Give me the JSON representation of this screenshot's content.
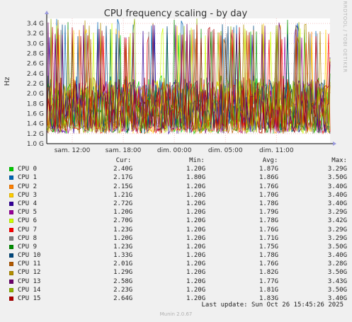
{
  "chart_data": {
    "type": "line",
    "title": "CPU frequency scaling - by day",
    "ylabel": "Hz",
    "side_label": "RRDTOOL / TOBI OETIKER",
    "ylim": [
      1.0,
      3.5
    ],
    "y_ticks": [
      {
        "value": 1.0,
        "label": "1.0 G"
      },
      {
        "value": 1.2,
        "label": "1.2 G"
      },
      {
        "value": 1.4,
        "label": "1.4 G"
      },
      {
        "value": 1.6,
        "label": "1.6 G"
      },
      {
        "value": 1.8,
        "label": "1.8 G"
      },
      {
        "value": 2.0,
        "label": "2.0 G"
      },
      {
        "value": 2.2,
        "label": "2.2 G"
      },
      {
        "value": 2.4,
        "label": "2.4 G"
      },
      {
        "value": 2.6,
        "label": "2.6 G"
      },
      {
        "value": 2.8,
        "label": "2.8 G"
      },
      {
        "value": 3.0,
        "label": "3.0 G"
      },
      {
        "value": 3.2,
        "label": "3.2 G"
      },
      {
        "value": 3.4,
        "label": "3.4 G"
      }
    ],
    "x_ticks": [
      {
        "hours": 3,
        "label": "sam. 12:00"
      },
      {
        "hours": 9,
        "label": "sam. 18:00"
      },
      {
        "hours": 15,
        "label": "dim. 00:00"
      },
      {
        "hours": 21,
        "label": "dim. 05:00"
      },
      {
        "hours": 27,
        "label": "dim. 11:00"
      }
    ],
    "x_range_hours": [
      0,
      33.3
    ],
    "grid": true,
    "series": [
      {
        "name": "CPU 0",
        "color": "#00cc00",
        "cur": "2.40G",
        "min": "1.20G",
        "avg": "1.87G",
        "max": "3.29G"
      },
      {
        "name": "CPU 1",
        "color": "#0066b3",
        "cur": "2.17G",
        "min": "1.80G",
        "avg": "1.86G",
        "max": "3.50G"
      },
      {
        "name": "CPU 2",
        "color": "#ff8000",
        "cur": "2.15G",
        "min": "1.20G",
        "avg": "1.76G",
        "max": "3.40G"
      },
      {
        "name": "CPU 3",
        "color": "#ffcc00",
        "cur": "1.21G",
        "min": "1.20G",
        "avg": "1.70G",
        "max": "3.40G"
      },
      {
        "name": "CPU 4",
        "color": "#330099",
        "cur": "2.72G",
        "min": "1.20G",
        "avg": "1.78G",
        "max": "3.40G"
      },
      {
        "name": "CPU 5",
        "color": "#990099",
        "cur": "1.20G",
        "min": "1.20G",
        "avg": "1.79G",
        "max": "3.29G"
      },
      {
        "name": "CPU 6",
        "color": "#ccff00",
        "cur": "2.70G",
        "min": "1.20G",
        "avg": "1.78G",
        "max": "3.42G"
      },
      {
        "name": "CPU 7",
        "color": "#ff0000",
        "cur": "1.23G",
        "min": "1.20G",
        "avg": "1.76G",
        "max": "3.29G"
      },
      {
        "name": "CPU 8",
        "color": "#808080",
        "cur": "1.20G",
        "min": "1.20G",
        "avg": "1.71G",
        "max": "3.29G"
      },
      {
        "name": "CPU 9",
        "color": "#008f00",
        "cur": "1.23G",
        "min": "1.20G",
        "avg": "1.75G",
        "max": "3.50G"
      },
      {
        "name": "CPU 10",
        "color": "#00487d",
        "cur": "1.33G",
        "min": "1.20G",
        "avg": "1.78G",
        "max": "3.40G"
      },
      {
        "name": "CPU 11",
        "color": "#b35a00",
        "cur": "2.01G",
        "min": "1.20G",
        "avg": "1.76G",
        "max": "3.28G"
      },
      {
        "name": "CPU 12",
        "color": "#b38f00",
        "cur": "1.29G",
        "min": "1.20G",
        "avg": "1.82G",
        "max": "3.50G"
      },
      {
        "name": "CPU 13",
        "color": "#6b006b",
        "cur": "2.58G",
        "min": "1.20G",
        "avg": "1.77G",
        "max": "3.43G"
      },
      {
        "name": "CPU 14",
        "color": "#8fb300",
        "cur": "2.23G",
        "min": "1.20G",
        "avg": "1.81G",
        "max": "3.50G"
      },
      {
        "name": "CPU 15",
        "color": "#b30000",
        "cur": "2.64G",
        "min": "1.20G",
        "avg": "1.83G",
        "max": "3.40G"
      }
    ]
  },
  "legend_headers": {
    "cur": "Cur:",
    "min": "Min:",
    "avg": "Avg:",
    "max": "Max:"
  },
  "last_update": "Last update: Sun Oct 26 15:45:26 2025",
  "footer": "Munin 2.0.67"
}
